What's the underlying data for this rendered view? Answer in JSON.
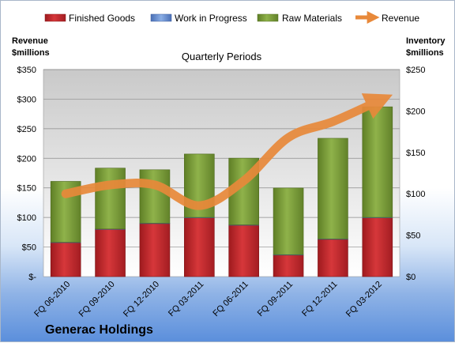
{
  "chart_data": {
    "type": "bar",
    "title": "Quarterly Periods",
    "company": "Generac Holdings",
    "left_axis_label": [
      "Revenue",
      "$millions"
    ],
    "right_axis_label": [
      "Inventory",
      "$millions"
    ],
    "categories": [
      "FQ 06-2010",
      "FQ 09-2010",
      "FQ 12-2010",
      "FQ 03-2011",
      "FQ 06-2011",
      "FQ 09-2011",
      "FQ 12-2011",
      "FQ 03-2012"
    ],
    "left_ticks": [
      "$-",
      "$50",
      "$100",
      "$150",
      "$200",
      "$250",
      "$300",
      "$350"
    ],
    "right_ticks": [
      "$0",
      "$50",
      "$100",
      "$150",
      "$200",
      "$250"
    ],
    "left_ylim": [
      0,
      350
    ],
    "right_ylim": [
      0,
      250
    ],
    "stacked": true,
    "grid": true,
    "legend_position": "top",
    "series": [
      {
        "name": "Finished Goods",
        "axis": "right",
        "color": "#c0282d",
        "values": [
          41,
          57,
          64,
          71,
          62,
          26,
          45,
          71
        ]
      },
      {
        "name": "Work in Progress",
        "axis": "right",
        "color": "#5b82c9",
        "values": [
          0.5,
          0.5,
          0.5,
          0.5,
          0.5,
          0.5,
          0.5,
          0.5
        ]
      },
      {
        "name": "Raw Materials",
        "axis": "right",
        "color": "#7da03c",
        "values": [
          73.5,
          73.5,
          64.5,
          76.5,
          80.5,
          80.5,
          121.5,
          133.5
        ]
      },
      {
        "name": "Revenue",
        "axis": "left",
        "type": "line",
        "color": "#e8893a",
        "values": [
          140,
          155,
          155,
          120,
          162,
          235,
          262,
          296
        ]
      }
    ]
  }
}
